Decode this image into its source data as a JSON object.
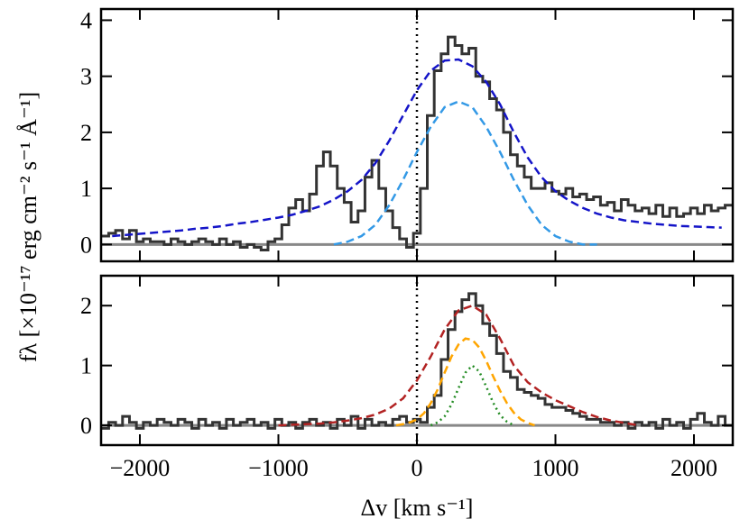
{
  "chart_data": [
    {
      "type": "line",
      "ylabel": "fλ [×10⁻¹⁷ erg cm⁻² s⁻¹ Å⁻¹]",
      "xlim": [
        -2280,
        2280
      ],
      "ylim": [
        -0.3,
        4.2
      ],
      "yticks": [
        0,
        1,
        2,
        3,
        4
      ],
      "hline": 0,
      "vline": 0,
      "series": [
        {
          "color": "#333333",
          "style": "step",
          "x": [
            -2250,
            -2200,
            -2150,
            -2100,
            -2050,
            -2000,
            -1950,
            -1900,
            -1850,
            -1800,
            -1750,
            -1700,
            -1650,
            -1600,
            -1550,
            -1500,
            -1450,
            -1400,
            -1350,
            -1300,
            -1250,
            -1200,
            -1150,
            -1100,
            -1050,
            -1000,
            -950,
            -900,
            -850,
            -800,
            -750,
            -700,
            -650,
            -600,
            -550,
            -500,
            -450,
            -400,
            -350,
            -300,
            -250,
            -200,
            -150,
            -100,
            -50,
            0,
            50,
            100,
            150,
            200,
            250,
            300,
            350,
            400,
            450,
            500,
            550,
            600,
            650,
            700,
            750,
            800,
            850,
            900,
            950,
            1000,
            1050,
            1100,
            1150,
            1200,
            1250,
            1300,
            1350,
            1400,
            1450,
            1500,
            1550,
            1600,
            1650,
            1700,
            1750,
            1800,
            1850,
            1900,
            1950,
            2000,
            2050,
            2100,
            2150,
            2200,
            2250
          ],
          "values": [
            0.15,
            0.2,
            0.25,
            0.1,
            0.25,
            0.05,
            0.1,
            0.05,
            0.05,
            0.0,
            0.1,
            0.05,
            0.0,
            0.05,
            0.1,
            0.05,
            0.0,
            0.1,
            0.0,
            0.05,
            -0.05,
            0.0,
            -0.05,
            -0.1,
            0.05,
            0.1,
            0.35,
            0.65,
            0.8,
            0.6,
            0.9,
            1.4,
            1.65,
            1.4,
            1.0,
            0.75,
            0.4,
            0.6,
            1.2,
            1.5,
            1.0,
            0.6,
            0.3,
            0.1,
            -0.05,
            0.2,
            1.0,
            2.3,
            3.1,
            3.4,
            3.7,
            3.55,
            3.4,
            3.5,
            3.0,
            2.9,
            2.6,
            2.4,
            2.0,
            1.6,
            1.4,
            1.2,
            1.0,
            1.0,
            1.1,
            0.95,
            0.9,
            1.0,
            0.85,
            0.9,
            0.8,
            0.85,
            0.7,
            0.75,
            0.6,
            0.8,
            0.7,
            0.6,
            0.65,
            0.55,
            0.7,
            0.5,
            0.65,
            0.5,
            0.55,
            0.65,
            0.55,
            0.7,
            0.6,
            0.65,
            0.7
          ]
        },
        {
          "color": "#1414c8",
          "style": "dashed",
          "x": [
            -2200,
            -2100,
            -2000,
            -1900,
            -1800,
            -1700,
            -1600,
            -1500,
            -1400,
            -1300,
            -1200,
            -1100,
            -1000,
            -900,
            -800,
            -700,
            -600,
            -500,
            -400,
            -300,
            -200,
            -100,
            0,
            100,
            200,
            300,
            400,
            500,
            600,
            700,
            800,
            900,
            1000,
            1100,
            1200,
            1300,
            1400,
            1500,
            1600,
            1700,
            1800,
            1900,
            2000,
            2100,
            2200
          ],
          "values": [
            0.15,
            0.17,
            0.19,
            0.21,
            0.23,
            0.25,
            0.28,
            0.3,
            0.33,
            0.37,
            0.4,
            0.44,
            0.48,
            0.53,
            0.6,
            0.68,
            0.8,
            0.95,
            1.15,
            1.45,
            1.85,
            2.3,
            2.75,
            3.1,
            3.28,
            3.3,
            3.18,
            2.9,
            2.5,
            2.0,
            1.55,
            1.2,
            0.95,
            0.78,
            0.65,
            0.55,
            0.48,
            0.43,
            0.4,
            0.37,
            0.35,
            0.33,
            0.32,
            0.31,
            0.3
          ]
        },
        {
          "color": "#3399e6",
          "style": "dashed",
          "x": [
            -600,
            -500,
            -400,
            -300,
            -200,
            -100,
            0,
            100,
            200,
            300,
            400,
            500,
            600,
            700,
            800,
            900,
            1000,
            1100,
            1200,
            1300
          ],
          "values": [
            0.0,
            0.05,
            0.15,
            0.35,
            0.7,
            1.15,
            1.65,
            2.1,
            2.45,
            2.55,
            2.45,
            2.1,
            1.65,
            1.15,
            0.7,
            0.35,
            0.15,
            0.05,
            0.0,
            0.0
          ]
        }
      ]
    },
    {
      "type": "line",
      "xlabel": "Δv [km s⁻¹]",
      "xlim": [
        -2280,
        2280
      ],
      "ylim": [
        -0.33,
        2.5
      ],
      "yticks": [
        0,
        1,
        2
      ],
      "xticks": [
        {
          "value": -2000,
          "label": "−2000"
        },
        {
          "value": -1000,
          "label": "−1000"
        },
        0,
        1000,
        2000
      ],
      "hline": 0,
      "vline": 0,
      "series": [
        {
          "color": "#333333",
          "style": "step",
          "x": [
            -2250,
            -2200,
            -2150,
            -2100,
            -2050,
            -2000,
            -1950,
            -1900,
            -1850,
            -1800,
            -1750,
            -1700,
            -1650,
            -1600,
            -1550,
            -1500,
            -1450,
            -1400,
            -1350,
            -1300,
            -1250,
            -1200,
            -1150,
            -1100,
            -1050,
            -1000,
            -950,
            -900,
            -850,
            -800,
            -750,
            -700,
            -650,
            -600,
            -550,
            -500,
            -450,
            -400,
            -350,
            -300,
            -250,
            -200,
            -150,
            -100,
            -50,
            0,
            50,
            100,
            150,
            200,
            250,
            300,
            350,
            400,
            450,
            500,
            550,
            600,
            650,
            700,
            750,
            800,
            850,
            900,
            950,
            1000,
            1050,
            1100,
            1150,
            1200,
            1250,
            1300,
            1350,
            1400,
            1450,
            1500,
            1550,
            1600,
            1650,
            1700,
            1750,
            1800,
            1850,
            1900,
            1950,
            2000,
            2050,
            2100,
            2150,
            2200,
            2250
          ],
          "values": [
            -0.05,
            0.05,
            0.0,
            0.15,
            0.05,
            -0.05,
            0.05,
            0.0,
            0.1,
            0.05,
            0.0,
            0.1,
            0.05,
            -0.05,
            0.1,
            0.0,
            0.05,
            -0.05,
            0.1,
            0.0,
            0.05,
            0.1,
            0.0,
            0.05,
            -0.05,
            0.1,
            0.0,
            0.05,
            -0.05,
            0.05,
            0.1,
            0.0,
            0.05,
            -0.05,
            0.1,
            0.0,
            0.15,
            -0.05,
            0.1,
            0.0,
            0.05,
            0.0,
            0.1,
            0.15,
            0.05,
            0.1,
            0.05,
            0.3,
            0.5,
            1.1,
            1.6,
            1.9,
            2.1,
            2.2,
            2.0,
            1.7,
            1.5,
            1.2,
            0.9,
            0.8,
            0.6,
            0.55,
            0.5,
            0.45,
            0.35,
            0.3,
            0.3,
            0.25,
            0.2,
            0.15,
            0.1,
            0.1,
            0.05,
            0.05,
            0.0,
            0.05,
            -0.05,
            0.05,
            0.0,
            0.05,
            -0.05,
            0.1,
            0.0,
            0.05,
            -0.05,
            0.1,
            0.2,
            0.05,
            0.0,
            0.15,
            0.0
          ]
        },
        {
          "color": "#b22222",
          "style": "dashed",
          "x": [
            -1000,
            -900,
            -800,
            -700,
            -600,
            -500,
            -400,
            -300,
            -200,
            -100,
            0,
            100,
            200,
            300,
            400,
            500,
            600,
            700,
            800,
            900,
            1000,
            1100,
            1200,
            1300,
            1400,
            1500,
            1600
          ],
          "values": [
            0.0,
            0.01,
            0.02,
            0.03,
            0.05,
            0.08,
            0.12,
            0.18,
            0.28,
            0.45,
            0.75,
            1.15,
            1.6,
            1.92,
            2.0,
            1.85,
            1.45,
            1.0,
            0.72,
            0.55,
            0.42,
            0.32,
            0.22,
            0.14,
            0.08,
            0.04,
            0.0
          ]
        },
        {
          "color": "#ffa500",
          "style": "dashed",
          "x": [
            -150,
            -100,
            -50,
            0,
            50,
            100,
            150,
            200,
            250,
            300,
            350,
            400,
            450,
            500,
            550,
            600,
            650,
            700,
            750,
            800,
            850
          ],
          "values": [
            0.0,
            0.02,
            0.05,
            0.1,
            0.2,
            0.37,
            0.6,
            0.88,
            1.15,
            1.35,
            1.45,
            1.43,
            1.3,
            1.08,
            0.82,
            0.58,
            0.37,
            0.21,
            0.1,
            0.04,
            0.0
          ]
        },
        {
          "color": "#228b22",
          "style": "dotted",
          "x": [
            100,
            150,
            200,
            250,
            300,
            350,
            400,
            450,
            500,
            550,
            600,
            650,
            700
          ],
          "values": [
            0.0,
            0.05,
            0.15,
            0.35,
            0.62,
            0.88,
            1.0,
            0.9,
            0.65,
            0.38,
            0.17,
            0.06,
            0.0
          ]
        }
      ]
    }
  ]
}
